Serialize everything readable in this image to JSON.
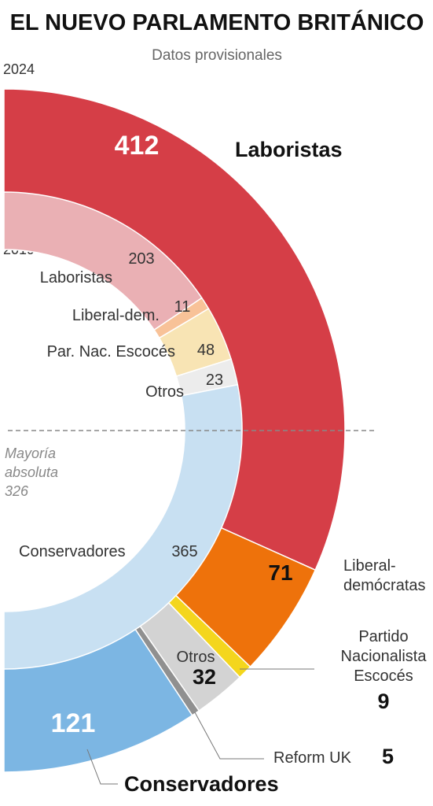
{
  "chart_data": {
    "type": "pie",
    "title": "EL NUEVO PARLAMENTO BRITÁNICO",
    "subtitle": "Datos provisionales",
    "majority_line": {
      "lines": [
        "Mayoría",
        "absoluta",
        "326"
      ],
      "value": 326
    },
    "outer": {
      "year": "2024",
      "total": 650,
      "series": [
        {
          "name": "Laboristas",
          "value": 412,
          "label": "412",
          "color": "#d53e47"
        },
        {
          "name": "Liberal-demócratas",
          "name_lines": [
            "Liberal-",
            "demócratas"
          ],
          "value": 71,
          "label": "71",
          "color": "#ee720b"
        },
        {
          "name": "Partido Nacionalista Escocés",
          "name_lines": [
            "Partido",
            "Nacionalista",
            "Escocés"
          ],
          "value": 9,
          "label": "9",
          "color": "#f4d61d"
        },
        {
          "name": "Otros",
          "value": 32,
          "label": "32",
          "color": "#d3d3d3"
        },
        {
          "name": "Reform UK",
          "value": 5,
          "label": "5",
          "color": "#909090"
        },
        {
          "name": "Conservadores",
          "value": 121,
          "label": "121",
          "color": "#7cb6e3"
        }
      ]
    },
    "inner": {
      "year": "2019",
      "total": 650,
      "series": [
        {
          "name": "Laboristas",
          "value": 203,
          "label": "203",
          "color": "#eab0b4"
        },
        {
          "name": "Liberal-dem.",
          "value": 11,
          "label": "11",
          "color": "#f8c298"
        },
        {
          "name": "Par. Nac. Escocés",
          "value": 48,
          "label": "48",
          "color": "#f8e4b4"
        },
        {
          "name": "Otros",
          "value": 23,
          "label": "23",
          "color": "#ececec"
        },
        {
          "name": "Conservadores",
          "value": 365,
          "label": "365",
          "color": "#c8e0f2"
        }
      ]
    }
  }
}
